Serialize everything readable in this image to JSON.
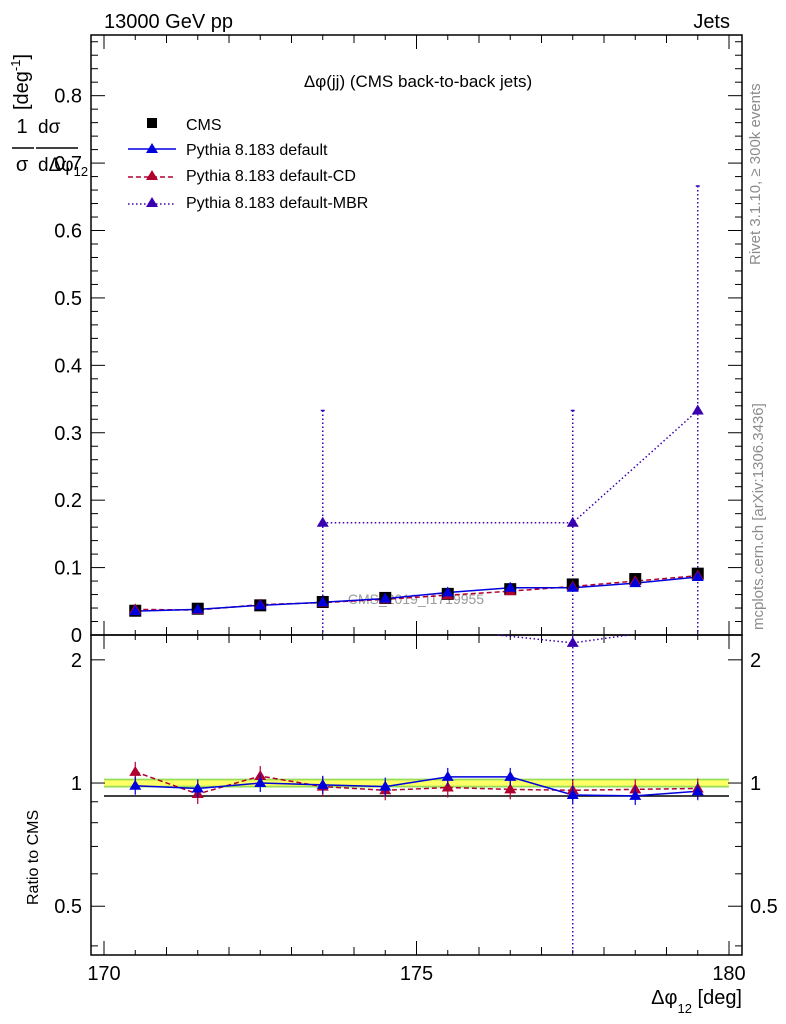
{
  "header": {
    "left": "13000 GeV pp",
    "right": "Jets"
  },
  "side_labels": {
    "rivet": "Rivet 3.1.10, ≥ 300k events",
    "mcplots": "mcplots.cern.ch [arXiv:1306.3436]"
  },
  "watermark": "CMS_2019_I1719955",
  "colors": {
    "cms": "#000000",
    "default": "#0000dd",
    "cd": "#b00030",
    "mbr": "#3a00b0",
    "band_inner": "#ffff66",
    "band_outer": "#99dd55"
  },
  "chart_data": {
    "type": "line",
    "title": "Δφ(jj) (CMS back-to-back jets)",
    "xlabel": "Δφ₁₂ [deg]",
    "ylabel": "1/σ dσ/dΔφ₁₂ [deg⁻¹]",
    "ratio_ylabel": "Ratio to CMS",
    "xlim": [
      170,
      180
    ],
    "ylim": [
      0,
      0.89
    ],
    "ratio_ylim": [
      0.38,
      2.3
    ],
    "ratio_scale": "log",
    "x": [
      170.5,
      171.5,
      172.5,
      173.5,
      174.5,
      175.5,
      176.5,
      177.5,
      178.5,
      179.5
    ],
    "x_ticks": [
      "170",
      "175",
      "180"
    ],
    "y_ticks": [
      "0",
      "0.1",
      "0.2",
      "0.3",
      "0.4",
      "0.5",
      "0.6",
      "0.7",
      "0.8"
    ],
    "ratio_ticks": [
      "0.5",
      "1",
      "2"
    ],
    "legend": [
      "CMS",
      "Pythia 8.183 default",
      "Pythia 8.183 default-CD",
      "Pythia 8.183 default-MBR"
    ],
    "series": [
      {
        "name": "CMS",
        "marker": "square",
        "values": [
          0.036,
          0.039,
          0.044,
          0.049,
          0.055,
          0.061,
          0.068,
          0.075,
          0.083,
          0.091
        ]
      },
      {
        "name": "Pythia 8.183 default",
        "marker": "triangle",
        "line": "solid",
        "values": [
          0.0355,
          0.038,
          0.044,
          0.0485,
          0.054,
          0.063,
          0.07,
          0.07,
          0.077,
          0.086
        ]
      },
      {
        "name": "Pythia 8.183 default-CD",
        "marker": "triangle",
        "line": "dashed",
        "values": [
          0.038,
          0.037,
          0.045,
          0.048,
          0.053,
          0.059,
          0.065,
          0.072,
          0.08,
          0.088
        ]
      },
      {
        "name": "Pythia 8.183 default-MBR",
        "marker": "triangle",
        "line": "dotted",
        "points": [
          {
            "x": 173.5,
            "y": 0.1665,
            "err": 0.1665
          },
          {
            "x": 177.5,
            "y": 0.1665,
            "err": 0.1665
          },
          {
            "x": 179.5,
            "y": 0.333,
            "err": 0.333
          }
        ]
      }
    ],
    "ratio_series": [
      {
        "name": "Pythia 8.183 default",
        "values": [
          0.985,
          0.97,
          1.0,
          0.99,
          0.98,
          1.035,
          1.035,
          0.935,
          0.93,
          0.955
        ]
      },
      {
        "name": "Pythia 8.183 default-CD",
        "values": [
          1.065,
          0.94,
          1.04,
          0.98,
          0.96,
          0.975,
          0.965,
          0.96,
          0.965,
          0.97
        ]
      },
      {
        "name": "Pythia 8.183 default-MBR",
        "points": [
          {
            "x": 177.5,
            "y": 2.2
          }
        ]
      }
    ],
    "cms_band": [
      0.985,
      1.015
    ]
  }
}
